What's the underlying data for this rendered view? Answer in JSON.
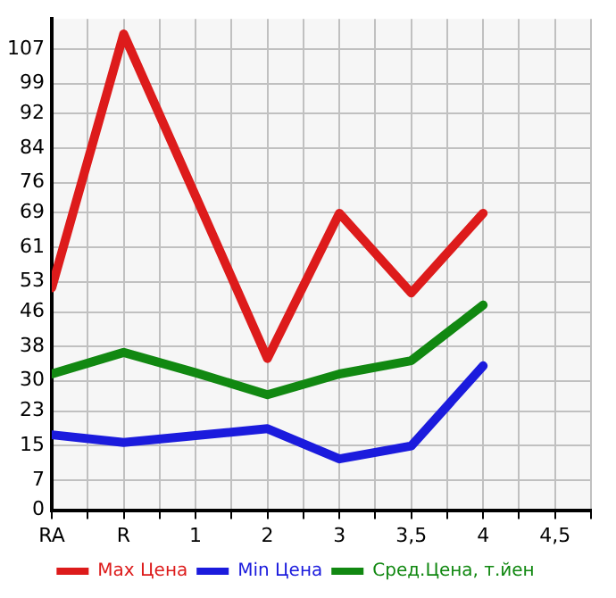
{
  "chart_data": {
    "type": "line",
    "categories": [
      "RA",
      "R",
      "1",
      "2",
      "3",
      "3,5",
      "4",
      "4,5"
    ],
    "series": [
      {
        "name": "Max Цена",
        "color": "#dd1b1b",
        "values": [
          51.6,
          110.5,
          72.9,
          35.2,
          68.9,
          50.4,
          68.9,
          null
        ]
      },
      {
        "name": "Min Цена",
        "color": "#1b1bdd",
        "values": [
          17.5,
          15.7,
          17.3,
          18.9,
          11.9,
          14.9,
          33.5,
          null
        ]
      },
      {
        "name": "Сред.Цена, т.йен",
        "color": "#118811",
        "values": [
          31.6,
          36.6,
          31.9,
          26.8,
          31.6,
          34.7,
          47.6,
          null
        ]
      }
    ],
    "ylim": [
      0,
      114
    ],
    "yticks": [
      0,
      7,
      15,
      23,
      30,
      38,
      46,
      53,
      61,
      69,
      76,
      84,
      92,
      99,
      107
    ],
    "grid": true,
    "legend": "bottom",
    "marker": "none",
    "line_style": "solid"
  }
}
